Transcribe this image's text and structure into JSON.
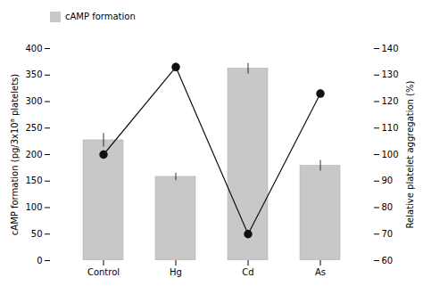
{
  "chart_data": {
    "type": "bar",
    "categories": [
      "Control",
      "Hg",
      "Cd",
      "As"
    ],
    "series": [
      {
        "name": "cAMP formation",
        "type": "bar",
        "color": "#c8c8c8",
        "values": [
          227,
          158,
          362,
          179
        ],
        "errors": [
          13,
          7,
          10,
          10
        ]
      },
      {
        "type": "line",
        "axis": "y2",
        "color": "#111111",
        "marker": "circle",
        "values": [
          100,
          133,
          70,
          123
        ],
        "errors": [
          1.5,
          1.5,
          1.5,
          1.5
        ]
      }
    ],
    "ylabel": "cAMP formation (pg/3x10⁸ platelets)",
    "y2label": "Relative platelet aggregation (%)",
    "ylim": [
      0,
      400
    ],
    "yticks": [
      0,
      50,
      100,
      150,
      200,
      250,
      300,
      350,
      400
    ],
    "y2lim": [
      60,
      140
    ],
    "y2ticks": [
      60,
      70,
      80,
      90,
      100,
      110,
      120,
      130,
      140
    ],
    "legend": "top",
    "grid": false
  }
}
